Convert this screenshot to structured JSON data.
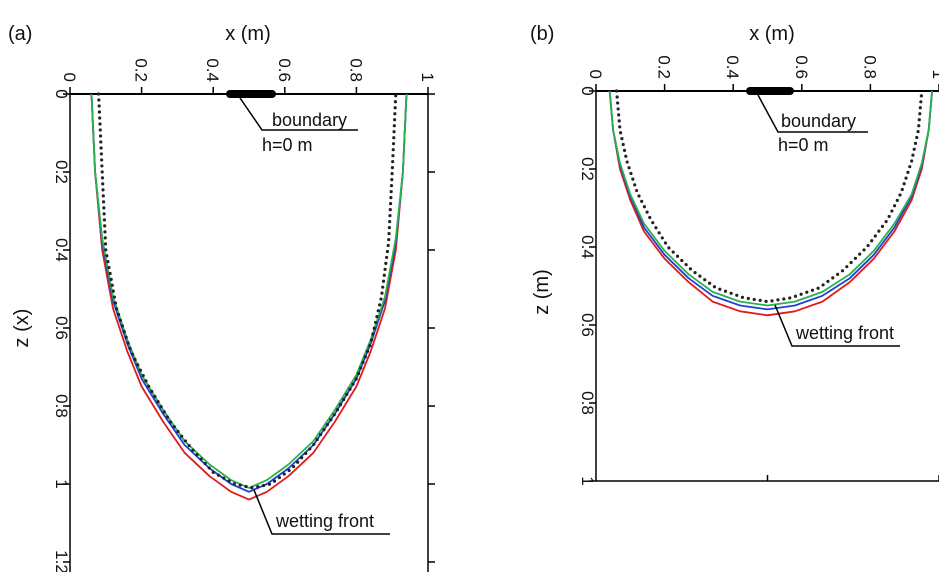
{
  "chart_data": [
    {
      "type": "line",
      "panel_label": "(a)",
      "xlabel": "x (m)",
      "ylabel": "z (x)",
      "xlim": [
        0,
        1
      ],
      "ylim": [
        0,
        1.2
      ],
      "x_ticks": [
        "0",
        "0.2",
        "0.4",
        "0.6",
        "0.8",
        "1"
      ],
      "y_ticks": [
        "0",
        "0.2",
        "0.4",
        "0.6",
        "0.8",
        "1",
        "1.2"
      ],
      "y_axis_direction": "down",
      "tick_label_rotation": "90 degrees",
      "boundary": {
        "label": "boundary",
        "sublabel": "h=0 m",
        "x_range": [
          0.45,
          0.57
        ]
      },
      "annotation": "wetting front",
      "series": [
        {
          "color": "#e01b1b",
          "style": "solid",
          "x": [
            0.06,
            0.07,
            0.09,
            0.12,
            0.16,
            0.2,
            0.26,
            0.32,
            0.39,
            0.45,
            0.5,
            0.55,
            0.61,
            0.68,
            0.74,
            0.8,
            0.84,
            0.88,
            0.91,
            0.93,
            0.94
          ],
          "y": [
            0,
            0.2,
            0.4,
            0.55,
            0.66,
            0.75,
            0.84,
            0.92,
            0.98,
            1.02,
            1.04,
            1.02,
            0.98,
            0.92,
            0.84,
            0.75,
            0.66,
            0.55,
            0.4,
            0.2,
            0
          ]
        },
        {
          "color": "#1e3fd8",
          "style": "solid",
          "x": [
            0.06,
            0.07,
            0.09,
            0.12,
            0.16,
            0.2,
            0.26,
            0.32,
            0.39,
            0.45,
            0.5,
            0.55,
            0.61,
            0.68,
            0.74,
            0.8,
            0.84,
            0.88,
            0.91,
            0.93,
            0.94
          ],
          "y": [
            0,
            0.2,
            0.38,
            0.53,
            0.64,
            0.73,
            0.82,
            0.9,
            0.96,
            1.0,
            1.02,
            1.0,
            0.96,
            0.9,
            0.82,
            0.73,
            0.64,
            0.53,
            0.38,
            0.2,
            0
          ]
        },
        {
          "color": "#27b34a",
          "style": "solid",
          "x": [
            0.06,
            0.07,
            0.09,
            0.12,
            0.16,
            0.2,
            0.26,
            0.32,
            0.39,
            0.45,
            0.5,
            0.55,
            0.61,
            0.68,
            0.74,
            0.8,
            0.84,
            0.88,
            0.91,
            0.93,
            0.94
          ],
          "y": [
            0,
            0.2,
            0.37,
            0.52,
            0.63,
            0.72,
            0.81,
            0.89,
            0.95,
            0.99,
            1.01,
            0.99,
            0.95,
            0.89,
            0.81,
            0.72,
            0.63,
            0.52,
            0.37,
            0.2,
            0
          ]
        },
        {
          "color": "#222222",
          "style": "dotted",
          "x": [
            0.08,
            0.09,
            0.1,
            0.13,
            0.17,
            0.22,
            0.28,
            0.34,
            0.4,
            0.46,
            0.51,
            0.56,
            0.62,
            0.68,
            0.74,
            0.8,
            0.84,
            0.87,
            0.89,
            0.9,
            0.91
          ],
          "y": [
            0,
            0.2,
            0.4,
            0.55,
            0.66,
            0.75,
            0.84,
            0.91,
            0.97,
            1.0,
            1.01,
            1.0,
            0.96,
            0.9,
            0.82,
            0.73,
            0.64,
            0.52,
            0.38,
            0.2,
            0
          ]
        }
      ]
    },
    {
      "type": "line",
      "panel_label": "(b)",
      "xlabel": "x (m)",
      "ylabel": "z (m)",
      "xlim": [
        0,
        1
      ],
      "ylim": [
        0,
        1
      ],
      "x_ticks": [
        "0",
        "0.2",
        "0.4",
        "0.6",
        "0.8",
        "1"
      ],
      "y_ticks": [
        "0",
        "0.2",
        "0.4",
        "0.6",
        "0.8",
        "1"
      ],
      "y_axis_direction": "down",
      "tick_label_rotation": "90 degrees",
      "boundary": {
        "label": "boundary",
        "sublabel": "h=0 m",
        "x_range": [
          0.44,
          0.56
        ]
      },
      "annotation": "wetting front",
      "series": [
        {
          "color": "#e01b1b",
          "style": "solid",
          "x": [
            0.04,
            0.05,
            0.07,
            0.1,
            0.14,
            0.2,
            0.27,
            0.34,
            0.42,
            0.5,
            0.58,
            0.66,
            0.74,
            0.81,
            0.87,
            0.92,
            0.95,
            0.97,
            0.98
          ],
          "y": [
            0,
            0.1,
            0.2,
            0.28,
            0.36,
            0.43,
            0.49,
            0.54,
            0.565,
            0.575,
            0.565,
            0.54,
            0.49,
            0.43,
            0.36,
            0.28,
            0.2,
            0.1,
            0
          ]
        },
        {
          "color": "#1e3fd8",
          "style": "solid",
          "x": [
            0.04,
            0.05,
            0.07,
            0.1,
            0.14,
            0.2,
            0.27,
            0.34,
            0.42,
            0.5,
            0.58,
            0.66,
            0.74,
            0.81,
            0.87,
            0.92,
            0.95,
            0.97,
            0.98
          ],
          "y": [
            0,
            0.1,
            0.19,
            0.27,
            0.35,
            0.42,
            0.48,
            0.525,
            0.55,
            0.56,
            0.55,
            0.525,
            0.48,
            0.42,
            0.35,
            0.27,
            0.19,
            0.1,
            0
          ]
        },
        {
          "color": "#27b34a",
          "style": "solid",
          "x": [
            0.04,
            0.05,
            0.07,
            0.1,
            0.14,
            0.2,
            0.27,
            0.34,
            0.42,
            0.5,
            0.58,
            0.66,
            0.74,
            0.81,
            0.87,
            0.92,
            0.95,
            0.97,
            0.98
          ],
          "y": [
            0,
            0.1,
            0.185,
            0.265,
            0.34,
            0.41,
            0.47,
            0.515,
            0.54,
            0.55,
            0.54,
            0.515,
            0.47,
            0.41,
            0.34,
            0.265,
            0.185,
            0.1,
            0
          ]
        },
        {
          "color": "#222222",
          "style": "dotted",
          "x": [
            0.06,
            0.07,
            0.09,
            0.12,
            0.16,
            0.21,
            0.28,
            0.35,
            0.43,
            0.5,
            0.57,
            0.65,
            0.72,
            0.79,
            0.85,
            0.89,
            0.92,
            0.94,
            0.95
          ],
          "y": [
            0,
            0.1,
            0.18,
            0.26,
            0.33,
            0.4,
            0.46,
            0.505,
            0.53,
            0.54,
            0.53,
            0.505,
            0.46,
            0.4,
            0.33,
            0.26,
            0.18,
            0.1,
            0
          ]
        }
      ]
    }
  ]
}
